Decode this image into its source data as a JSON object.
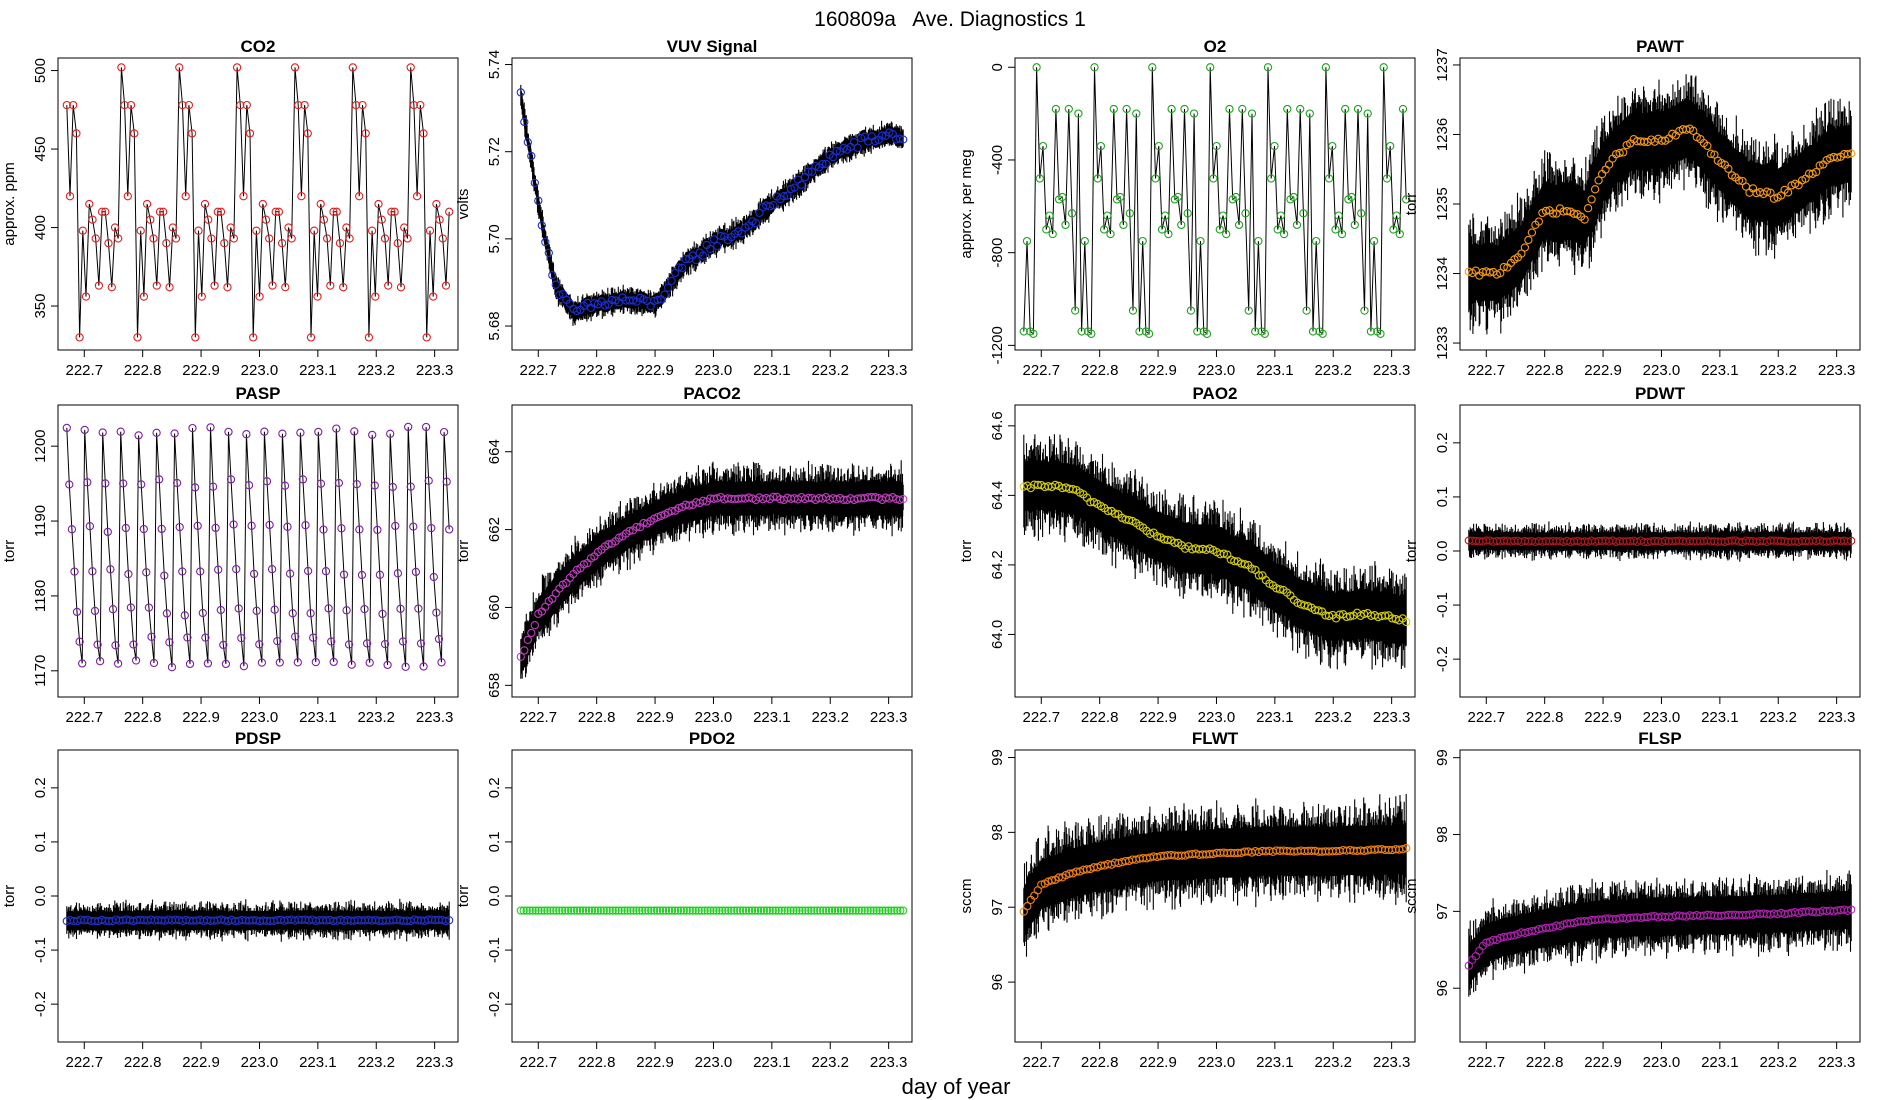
{
  "figure": {
    "title": "160809a   Ave. Diagnostics 1",
    "xlabel": "day of year"
  },
  "chart_data": [
    {
      "type": "scatter",
      "title": "CO2",
      "ylabel": "approx. ppm",
      "ylim": [
        322,
        508
      ],
      "yticks": [
        350,
        400,
        450,
        500
      ],
      "yticklabels": [
        "350",
        "400",
        "450",
        "500"
      ],
      "xlim": [
        222.655,
        223.34
      ],
      "xticks": [
        222.7,
        222.8,
        222.9,
        223.0,
        223.1,
        223.2,
        223.3
      ],
      "xticklabels": [
        "222.7",
        "222.8",
        "222.9",
        "223.0",
        "223.1",
        "223.2",
        "223.3"
      ],
      "marker_color": "#e02020",
      "pattern": "cycle",
      "cycle_values": [
        478,
        420,
        478,
        460,
        330,
        398,
        356,
        415,
        405,
        393,
        363,
        410,
        410,
        390,
        362,
        400,
        393,
        502
      ],
      "n_points": 120,
      "noise": 0,
      "connect": "line",
      "ribbon": 0
    },
    {
      "type": "scatter",
      "title": "VUV Signal",
      "ylabel": "volts",
      "ylim": [
        5.6745,
        5.7415
      ],
      "yticks": [
        5.68,
        5.7,
        5.72,
        5.74
      ],
      "yticklabels": [
        "5.68",
        "5.70",
        "5.72",
        "5.74"
      ],
      "xlim": [
        222.655,
        223.34
      ],
      "xticks": [
        222.7,
        222.8,
        222.9,
        223.0,
        223.1,
        223.2,
        223.3
      ],
      "xticklabels": [
        "222.7",
        "222.8",
        "222.9",
        "223.0",
        "223.1",
        "223.2",
        "223.3"
      ],
      "marker_color": "#1a2fd0",
      "pattern": "trend",
      "trend": [
        [
          222.67,
          5.733
        ],
        [
          222.7,
          5.708
        ],
        [
          222.73,
          5.689
        ],
        [
          222.76,
          5.683
        ],
        [
          222.8,
          5.685
        ],
        [
          222.85,
          5.686
        ],
        [
          222.9,
          5.685
        ],
        [
          222.95,
          5.694
        ],
        [
          223.0,
          5.699
        ],
        [
          223.05,
          5.702
        ],
        [
          223.1,
          5.708
        ],
        [
          223.15,
          5.713
        ],
        [
          223.2,
          5.719
        ],
        [
          223.25,
          5.722
        ],
        [
          223.3,
          5.724
        ],
        [
          223.33,
          5.723
        ]
      ],
      "n_points": 110,
      "noise": 0.0012,
      "connect": "line",
      "ribbon": 0.003
    },
    {
      "type": "scatter",
      "title": "O2",
      "ylabel": "approx. per meg",
      "ylim": [
        -1220,
        40
      ],
      "yticks": [
        -1200,
        -800,
        -400,
        0
      ],
      "yticklabels": [
        "-1200",
        "-800",
        "-400",
        "0"
      ],
      "xlim": [
        222.655,
        223.34
      ],
      "xticks": [
        222.7,
        222.8,
        222.9,
        223.0,
        223.1,
        223.2,
        223.3
      ],
      "xticklabels": [
        "222.7",
        "222.8",
        "222.9",
        "223.0",
        "223.1",
        "223.2",
        "223.3"
      ],
      "marker_color": "#1fa21f",
      "pattern": "cycle",
      "cycle_values": [
        -1140,
        -750,
        -1140,
        -1150,
        0,
        -480,
        -340,
        -700,
        -640,
        -720,
        -180,
        -570,
        -560,
        -680,
        -180,
        -630,
        -1050,
        -200
      ],
      "n_points": 120,
      "noise": 0,
      "connect": "line",
      "ribbon": 0
    },
    {
      "type": "scatter",
      "title": "PAWT",
      "ylabel": "torr",
      "ylim": [
        1232.9,
        1237.1
      ],
      "yticks": [
        1233,
        1234,
        1235,
        1236,
        1237
      ],
      "yticklabels": [
        "1233",
        "1234",
        "1235",
        "1236",
        "1237"
      ],
      "xlim": [
        222.655,
        223.34
      ],
      "xticks": [
        222.7,
        222.8,
        222.9,
        223.0,
        223.1,
        223.2,
        223.3
      ],
      "xticklabels": [
        "222.7",
        "222.8",
        "222.9",
        "223.0",
        "223.1",
        "223.2",
        "223.3"
      ],
      "marker_color": "#f59a10",
      "pattern": "trend",
      "trend": [
        [
          222.67,
          1234.0
        ],
        [
          222.72,
          1234.0
        ],
        [
          222.76,
          1234.3
        ],
        [
          222.8,
          1234.9
        ],
        [
          222.84,
          1234.9
        ],
        [
          222.87,
          1234.8
        ],
        [
          222.9,
          1235.5
        ],
        [
          222.95,
          1235.9
        ],
        [
          223.0,
          1235.9
        ],
        [
          223.05,
          1236.1
        ],
        [
          223.1,
          1235.6
        ],
        [
          223.15,
          1235.2
        ],
        [
          223.2,
          1235.1
        ],
        [
          223.25,
          1235.4
        ],
        [
          223.3,
          1235.7
        ],
        [
          223.33,
          1235.7
        ]
      ],
      "n_points": 110,
      "noise": 0.04,
      "connect": "none",
      "ribbon": 0.75
    },
    {
      "type": "scatter",
      "title": "PASP",
      "ylabel": "torr",
      "ylim": [
        1166.5,
        1205.5
      ],
      "yticks": [
        1170,
        1180,
        1190,
        1200
      ],
      "yticklabels": [
        "1170",
        "1180",
        "1190",
        "1200"
      ],
      "xlim": [
        222.655,
        223.34
      ],
      "xticks": [
        222.7,
        222.8,
        222.9,
        223.0,
        223.1,
        223.2,
        223.3
      ],
      "xticklabels": [
        "222.7",
        "222.8",
        "222.9",
        "223.0",
        "223.1",
        "223.2",
        "223.3"
      ],
      "marker_color": "#7b1fa2",
      "pattern": "cycle",
      "cycle_values": [
        1202,
        1195,
        1189,
        1183,
        1178,
        1174,
        1171
      ],
      "n_points": 150,
      "noise": 1.2,
      "connect": "line",
      "ribbon": 0
    },
    {
      "type": "scatter",
      "title": "PACO2",
      "ylabel": "torr",
      "ylim": [
        657.7,
        665.2
      ],
      "yticks": [
        658,
        660,
        662,
        664
      ],
      "yticklabels": [
        "658",
        "660",
        "662",
        "664"
      ],
      "xlim": [
        222.655,
        223.34
      ],
      "xticks": [
        222.7,
        222.8,
        222.9,
        223.0,
        223.1,
        223.2,
        223.3
      ],
      "xticklabels": [
        "222.7",
        "222.8",
        "222.9",
        "223.0",
        "223.1",
        "223.2",
        "223.3"
      ],
      "marker_color": "#c03cc0",
      "pattern": "trend",
      "trend": [
        [
          222.67,
          658.7
        ],
        [
          222.7,
          659.8
        ],
        [
          222.75,
          660.7
        ],
        [
          222.8,
          661.4
        ],
        [
          222.85,
          661.9
        ],
        [
          222.9,
          662.3
        ],
        [
          222.95,
          662.6
        ],
        [
          223.0,
          662.8
        ],
        [
          223.1,
          662.8
        ],
        [
          223.2,
          662.8
        ],
        [
          223.33,
          662.8
        ]
      ],
      "n_points": 110,
      "noise": 0.04,
      "connect": "none",
      "ribbon": 0.8
    },
    {
      "type": "scatter",
      "title": "PAO2",
      "ylabel": "torr",
      "ylim": [
        63.82,
        64.66
      ],
      "yticks": [
        64.0,
        64.2,
        64.4,
        64.6
      ],
      "yticklabels": [
        "64.0",
        "64.2",
        "64.4",
        "64.6"
      ],
      "xlim": [
        222.655,
        223.34
      ],
      "xticks": [
        222.7,
        222.8,
        222.9,
        223.0,
        223.1,
        223.2,
        223.3
      ],
      "xticklabels": [
        "222.7",
        "222.8",
        "222.9",
        "223.0",
        "223.1",
        "223.2",
        "223.3"
      ],
      "marker_color": "#d8d000",
      "pattern": "trend",
      "trend": [
        [
          222.67,
          64.42
        ],
        [
          222.7,
          64.43
        ],
        [
          222.75,
          64.42
        ],
        [
          222.8,
          64.37
        ],
        [
          222.85,
          64.33
        ],
        [
          222.9,
          64.28
        ],
        [
          222.95,
          64.25
        ],
        [
          223.0,
          64.24
        ],
        [
          223.05,
          64.2
        ],
        [
          223.1,
          64.14
        ],
        [
          223.15,
          64.08
        ],
        [
          223.2,
          64.05
        ],
        [
          223.25,
          64.06
        ],
        [
          223.3,
          64.05
        ],
        [
          223.33,
          64.04
        ]
      ],
      "n_points": 110,
      "noise": 0.006,
      "connect": "none",
      "ribbon": 0.13
    },
    {
      "type": "scatter",
      "title": "PDWT",
      "ylabel": "torr",
      "ylim": [
        -0.27,
        0.27
      ],
      "yticks": [
        -0.2,
        -0.1,
        0.0,
        0.1,
        0.2
      ],
      "yticklabels": [
        "-0.2",
        "-0.1",
        "0.0",
        "0.1",
        "0.2"
      ],
      "xlim": [
        222.655,
        223.34
      ],
      "xticks": [
        222.7,
        222.8,
        222.9,
        223.0,
        223.1,
        223.2,
        223.3
      ],
      "xticklabels": [
        "222.7",
        "222.8",
        "222.9",
        "223.0",
        "223.1",
        "223.2",
        "223.3"
      ],
      "marker_color": "#b01818",
      "pattern": "trend",
      "trend": [
        [
          222.67,
          0.018
        ],
        [
          223.33,
          0.018
        ]
      ],
      "n_points": 110,
      "noise": 0.0015,
      "connect": "none",
      "ribbon": 0.03
    },
    {
      "type": "scatter",
      "title": "PDSP",
      "ylabel": "torr",
      "ylim": [
        -0.27,
        0.27
      ],
      "yticks": [
        -0.2,
        -0.1,
        0.0,
        0.1,
        0.2
      ],
      "yticklabels": [
        "-0.2",
        "-0.1",
        "0.0",
        "0.1",
        "0.2"
      ],
      "xlim": [
        222.655,
        223.34
      ],
      "xticks": [
        222.7,
        222.8,
        222.9,
        223.0,
        223.1,
        223.2,
        223.3
      ],
      "xticklabels": [
        "222.7",
        "222.8",
        "222.9",
        "223.0",
        "223.1",
        "223.2",
        "223.3"
      ],
      "marker_color": "#2030c0",
      "pattern": "trend",
      "trend": [
        [
          222.67,
          -0.045
        ],
        [
          223.33,
          -0.045
        ]
      ],
      "n_points": 110,
      "noise": 0.0015,
      "connect": "none",
      "ribbon": 0.032
    },
    {
      "type": "scatter",
      "title": "PDO2",
      "ylabel": "torr",
      "ylim": [
        -0.27,
        0.27
      ],
      "yticks": [
        -0.2,
        -0.1,
        0.0,
        0.1,
        0.2
      ],
      "yticklabels": [
        "-0.2",
        "-0.1",
        "0.0",
        "0.1",
        "0.2"
      ],
      "xlim": [
        222.655,
        223.34
      ],
      "xticks": [
        222.7,
        222.8,
        222.9,
        223.0,
        223.1,
        223.2,
        223.3
      ],
      "xticklabels": [
        "222.7",
        "222.8",
        "222.9",
        "223.0",
        "223.1",
        "223.2",
        "223.3"
      ],
      "marker_color": "#22cc22",
      "pattern": "trend",
      "trend": [
        [
          222.67,
          -0.027
        ],
        [
          223.33,
          -0.027
        ]
      ],
      "n_points": 130,
      "noise": 0,
      "connect": "none",
      "ribbon": 0
    },
    {
      "type": "scatter",
      "title": "FLWT",
      "ylabel": "sccm",
      "ylim": [
        95.2,
        99.1
      ],
      "yticks": [
        96,
        97,
        98,
        99
      ],
      "yticklabels": [
        "96",
        "97",
        "98",
        "99"
      ],
      "xlim": [
        222.655,
        223.34
      ],
      "xticks": [
        222.7,
        222.8,
        222.9,
        223.0,
        223.1,
        223.2,
        223.3
      ],
      "xticklabels": [
        "222.7",
        "222.8",
        "222.9",
        "223.0",
        "223.1",
        "223.2",
        "223.3"
      ],
      "marker_color": "#f08010",
      "pattern": "trend",
      "trend": [
        [
          222.67,
          96.95
        ],
        [
          222.7,
          97.3
        ],
        [
          222.75,
          97.45
        ],
        [
          222.8,
          97.55
        ],
        [
          222.85,
          97.62
        ],
        [
          222.9,
          97.68
        ],
        [
          223.0,
          97.72
        ],
        [
          223.1,
          97.75
        ],
        [
          223.2,
          97.75
        ],
        [
          223.33,
          97.78
        ]
      ],
      "n_points": 110,
      "noise": 0.01,
      "connect": "none",
      "ribbon": 0.6
    },
    {
      "type": "scatter",
      "title": "FLSP",
      "ylabel": "sccm",
      "ylim": [
        95.3,
        99.1
      ],
      "yticks": [
        96,
        97,
        98,
        99
      ],
      "yticklabels": [
        "96",
        "97",
        "98",
        "99"
      ],
      "xlim": [
        222.655,
        223.34
      ],
      "xticks": [
        222.7,
        222.8,
        222.9,
        223.0,
        223.1,
        223.2,
        223.3
      ],
      "xticklabels": [
        "222.7",
        "222.8",
        "222.9",
        "223.0",
        "223.1",
        "223.2",
        "223.3"
      ],
      "marker_color": "#b020b0",
      "pattern": "trend",
      "trend": [
        [
          222.67,
          96.3
        ],
        [
          222.7,
          96.6
        ],
        [
          222.75,
          96.7
        ],
        [
          222.8,
          96.78
        ],
        [
          222.85,
          96.85
        ],
        [
          222.9,
          96.9
        ],
        [
          223.0,
          96.93
        ],
        [
          223.1,
          96.95
        ],
        [
          223.2,
          96.97
        ],
        [
          223.33,
          97.02
        ]
      ],
      "n_points": 110,
      "noise": 0.01,
      "connect": "none",
      "ribbon": 0.45
    }
  ]
}
